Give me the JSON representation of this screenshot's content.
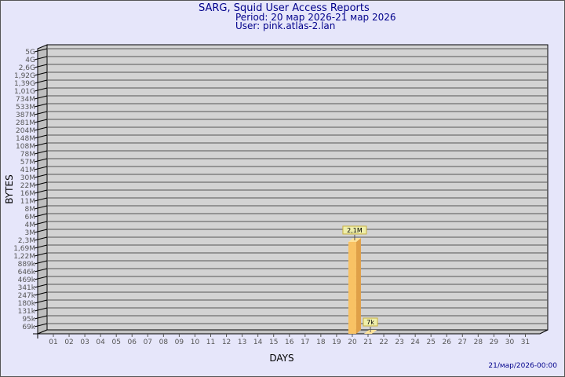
{
  "header": {
    "title": "SARG, Squid User Access Reports",
    "period": "Period: 20 мар 2026-21 мар 2026",
    "user": "User: pink.atlas-2.lan"
  },
  "footer": {
    "timestamp": "21/мар/2026-00:00"
  },
  "chart_data": {
    "type": "bar",
    "title": "SARG, Squid User Access Reports",
    "xlabel": "DAYS",
    "ylabel": "BYTES",
    "yscale": "log",
    "grid": true,
    "y_ticks": [
      "5G",
      "4G",
      "2,6G",
      "1,92G",
      "1,39G",
      "1,01G",
      "734M",
      "533M",
      "387M",
      "281M",
      "204M",
      "148M",
      "108M",
      "78M",
      "57M",
      "41M",
      "30M",
      "22M",
      "16M",
      "11M",
      "8M",
      "6M",
      "4M",
      "3M",
      "2,3M",
      "1,69M",
      "1,22M",
      "889k",
      "646k",
      "469k",
      "341k",
      "247k",
      "180k",
      "131k",
      "95k",
      "69k"
    ],
    "categories": [
      "01",
      "02",
      "03",
      "04",
      "05",
      "06",
      "07",
      "08",
      "09",
      "10",
      "11",
      "12",
      "13",
      "14",
      "15",
      "16",
      "17",
      "18",
      "19",
      "20",
      "21",
      "22",
      "23",
      "24",
      "25",
      "26",
      "27",
      "28",
      "29",
      "30",
      "31"
    ],
    "bars": [
      {
        "day": "20",
        "value": 2100000,
        "label": "2,1M"
      },
      {
        "day": "21",
        "value": 7000,
        "label": "7k"
      }
    ],
    "colors": {
      "background": "#e6e6fa",
      "plot": "#d3d3d3",
      "bar": "#f9c264",
      "bar_side": "#e0a048",
      "label_box": "#eeeeaa",
      "title": "#00008b"
    }
  }
}
